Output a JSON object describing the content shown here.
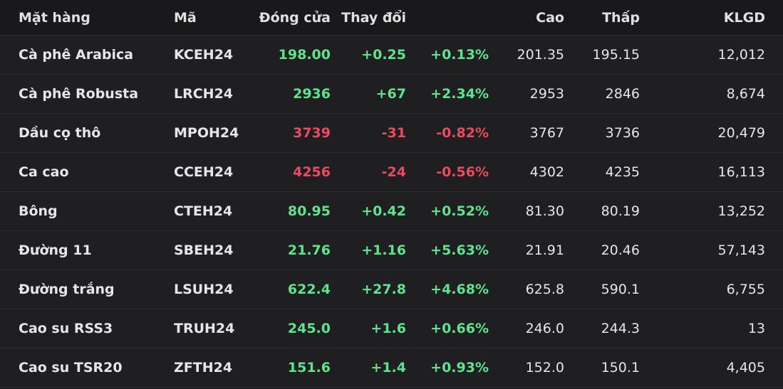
{
  "table": {
    "header": [
      "Mặt hàng",
      "Mã",
      "Đóng cửa",
      "Thay đổi",
      "",
      "Cao",
      "Thấp",
      "KLGD"
    ],
    "rows": [
      [
        "Cà phê Arabica",
        "KCEH24",
        "198.00",
        "+0.25",
        "+0.13%",
        "201.35",
        "195.15",
        "12,012"
      ],
      [
        "Cà phê Robusta",
        "LRCH24",
        "2936",
        "+67",
        "+2.34%",
        "2953",
        "2846",
        "8,674"
      ],
      [
        "Dầu cọ thô",
        "MPOH24",
        "3739",
        "-31",
        "-0.82%",
        "3767",
        "3736",
        "20,479"
      ],
      [
        "Ca cao",
        "CCEH24",
        "4256",
        "-24",
        "-0.56%",
        "4302",
        "4235",
        "16,113"
      ],
      [
        "Bông",
        "CTEH24",
        "80.95",
        "+0.42",
        "+0.52%",
        "81.30",
        "80.19",
        "13,252"
      ],
      [
        "Đường 11",
        "SBEH24",
        "21.76",
        "+1.16",
        "+5.63%",
        "21.91",
        "20.46",
        "57,143"
      ],
      [
        "Đường trắng",
        "LSUH24",
        "622.4",
        "+27.8",
        "+4.68%",
        "625.8",
        "590.1",
        "6,755"
      ],
      [
        "Cao su RSS3",
        "TRUH24",
        "245.0",
        "+1.6",
        "+0.66%",
        "246.0",
        "244.3",
        "13"
      ],
      [
        "Cao su TSR20",
        "ZFTH24",
        "151.6",
        "+1.4",
        "+0.93%",
        "152.0",
        "150.1",
        "4,405"
      ]
    ]
  }
}
